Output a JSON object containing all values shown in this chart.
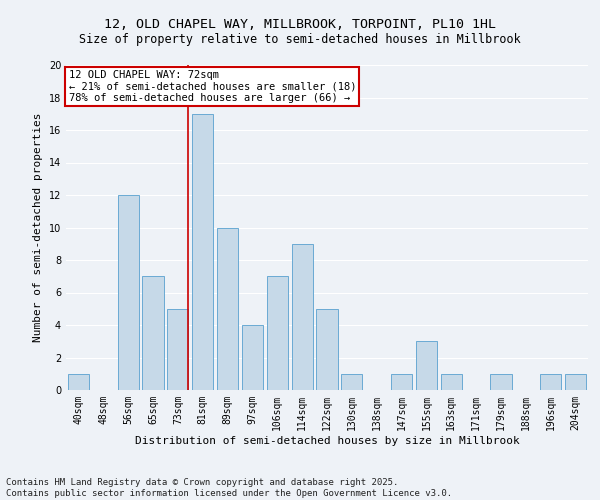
{
  "title": "12, OLD CHAPEL WAY, MILLBROOK, TORPOINT, PL10 1HL",
  "subtitle": "Size of property relative to semi-detached houses in Millbrook",
  "xlabel": "Distribution of semi-detached houses by size in Millbrook",
  "ylabel": "Number of semi-detached properties",
  "categories": [
    "40sqm",
    "48sqm",
    "56sqm",
    "65sqm",
    "73sqm",
    "81sqm",
    "89sqm",
    "97sqm",
    "106sqm",
    "114sqm",
    "122sqm",
    "130sqm",
    "138sqm",
    "147sqm",
    "155sqm",
    "163sqm",
    "171sqm",
    "179sqm",
    "188sqm",
    "196sqm",
    "204sqm"
  ],
  "values": [
    1,
    0,
    12,
    7,
    5,
    17,
    10,
    4,
    7,
    9,
    5,
    1,
    0,
    1,
    3,
    1,
    0,
    1,
    0,
    1,
    1
  ],
  "bar_color": "#c6d9e8",
  "bar_edge_color": "#6aaad4",
  "vline_x_index": 4,
  "vline_color": "#cc0000",
  "annotation_text": "12 OLD CHAPEL WAY: 72sqm\n← 21% of semi-detached houses are smaller (18)\n78% of semi-detached houses are larger (66) →",
  "annotation_box_color": "#cc0000",
  "ylim": [
    0,
    20
  ],
  "yticks": [
    0,
    2,
    4,
    6,
    8,
    10,
    12,
    14,
    16,
    18,
    20
  ],
  "footer_text": "Contains HM Land Registry data © Crown copyright and database right 2025.\nContains public sector information licensed under the Open Government Licence v3.0.",
  "background_color": "#eef2f7",
  "grid_color": "#ffffff",
  "title_fontsize": 9.5,
  "subtitle_fontsize": 8.5,
  "xlabel_fontsize": 8,
  "ylabel_fontsize": 8,
  "tick_fontsize": 7,
  "annotation_fontsize": 7.5,
  "footer_fontsize": 6.5
}
